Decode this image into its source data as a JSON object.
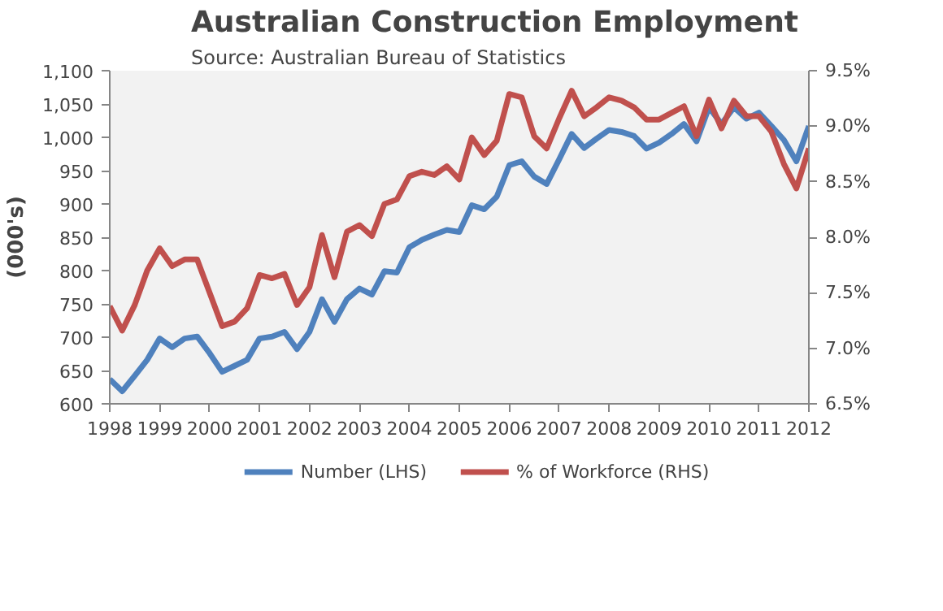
{
  "chart_data": {
    "type": "line",
    "title": "Australian  Construction  Employment",
    "subtitle": "Source: Australian Bureau of Statistics",
    "ylabel": "(000's)",
    "x": [
      1998,
      1998.25,
      1998.5,
      1998.75,
      1999,
      1999.25,
      1999.5,
      1999.75,
      2000,
      2000.25,
      2000.5,
      2000.75,
      2001,
      2001.25,
      2001.5,
      2001.75,
      2002,
      2002.25,
      2002.5,
      2002.75,
      2003,
      2003.25,
      2003.5,
      2003.75,
      2004,
      2004.25,
      2004.5,
      2004.75,
      2005,
      2005.25,
      2005.5,
      2005.75,
      2006,
      2006.25,
      2006.5,
      2006.75,
      2007,
      2007.25,
      2007.5,
      2007.75,
      2008,
      2008.25,
      2008.5,
      2008.75,
      2009,
      2009.25,
      2009.5,
      2009.75,
      2010,
      2010.25,
      2010.5,
      2010.75,
      2011,
      2011.25,
      2011.5,
      2011.75,
      2012
    ],
    "series": [
      {
        "name": "Number (LHS)",
        "color": "#4f81bd",
        "values": [
          637,
          619,
          642,
          666,
          698,
          685,
          698,
          701,
          676,
          648,
          657,
          666,
          698,
          701,
          708,
          682,
          708,
          757,
          723,
          757,
          773,
          764,
          799,
          797,
          835,
          846,
          854,
          861,
          858,
          898,
          892,
          911,
          958,
          964,
          941,
          930,
          967,
          1005,
          984,
          998,
          1011,
          1008,
          1002,
          983,
          992,
          1005,
          1020,
          994,
          1045,
          1020,
          1045,
          1028,
          1037,
          1017,
          996,
          964,
          1017
        ]
      },
      {
        "name": "% of Workforce (RHS)",
        "color": "#c0504d",
        "axis": "y2",
        "values": [
          7.38,
          7.16,
          7.39,
          7.7,
          7.9,
          7.74,
          7.8,
          7.8,
          7.5,
          7.2,
          7.24,
          7.36,
          7.66,
          7.63,
          7.67,
          7.39,
          7.55,
          8.02,
          7.64,
          8.05,
          8.11,
          8.01,
          8.3,
          8.34,
          8.55,
          8.59,
          8.56,
          8.64,
          8.52,
          8.9,
          8.74,
          8.87,
          9.29,
          9.26,
          8.91,
          8.8,
          9.07,
          9.32,
          9.09,
          9.17,
          9.26,
          9.23,
          9.17,
          9.06,
          9.06,
          9.12,
          9.18,
          8.91,
          9.24,
          8.98,
          9.23,
          9.09,
          9.09,
          8.95,
          8.66,
          8.44,
          8.8
        ]
      }
    ],
    "xlim": [
      1998,
      2012
    ],
    "xticks": [
      1998,
      1999,
      2000,
      2001,
      2002,
      2003,
      2004,
      2005,
      2006,
      2007,
      2008,
      2009,
      2010,
      2011,
      2012
    ],
    "ylim": [
      600,
      1100
    ],
    "yticks": [
      600,
      650,
      700,
      750,
      800,
      850,
      900,
      950,
      {
        "value": 1000,
        "label": "1,000"
      },
      {
        "value": 1050,
        "label": "1,050"
      },
      {
        "value": 1100,
        "label": "1,100"
      }
    ],
    "y2lim": [
      6.5,
      9.5
    ],
    "y2ticks": [
      {
        "value": 6.5,
        "label": "6.5%"
      },
      {
        "value": 7.0,
        "label": "7.0%"
      },
      {
        "value": 7.5,
        "label": "7.5%"
      },
      {
        "value": 8.0,
        "label": "8.0%"
      },
      {
        "value": 8.5,
        "label": "8.5%"
      },
      {
        "value": 9.0,
        "label": "9.0%"
      },
      {
        "value": 9.5,
        "label": "9.5%"
      }
    ],
    "grid": false,
    "legend": "bottom",
    "marker": "none",
    "line_style": "solid"
  }
}
